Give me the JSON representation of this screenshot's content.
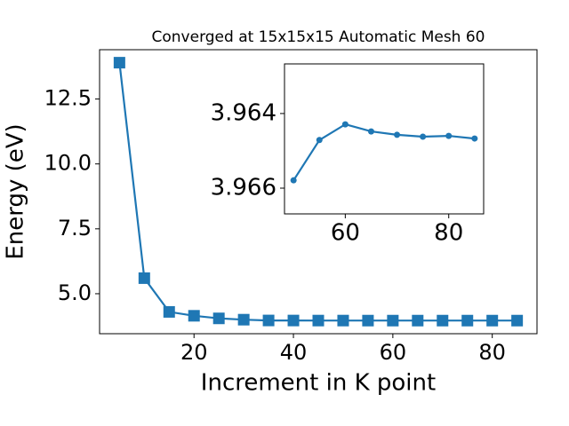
{
  "chart_data": [
    {
      "type": "line",
      "title": "Converged at 15x15x15 Automatic Mesh 60",
      "x_label": "Increment in K point",
      "y_label": "Energy (eV)",
      "x": [
        5,
        10,
        15,
        20,
        25,
        30,
        35,
        40,
        45,
        50,
        55,
        60,
        65,
        70,
        75,
        80,
        85
      ],
      "values": [
        13.9,
        5.6,
        4.3,
        4.15,
        4.05,
        4.0,
        3.97,
        3.968,
        3.966,
        3.9658,
        3.9647,
        3.9643,
        3.9645,
        3.9646,
        3.9646,
        3.9646,
        3.9647
      ],
      "color": "#1f77b4",
      "marker": "square",
      "xlim": [
        1,
        89
      ],
      "xticks": [
        20,
        40,
        60,
        80
      ],
      "ylim": [
        3.46,
        14.4
      ],
      "yticks": [
        {
          "value": 5,
          "label": "5.0"
        },
        7.5,
        {
          "value": 10,
          "label": "10.0"
        },
        12.5
      ]
    },
    {
      "type": "line",
      "x": [
        50,
        55,
        60,
        65,
        70,
        75,
        80,
        85
      ],
      "values": [
        3.96579,
        3.96471,
        3.96429,
        3.96448,
        3.96457,
        3.96462,
        3.9646,
        3.96467
      ],
      "color": "#1f77b4",
      "marker": "circle",
      "xlim": [
        48.25,
        86.75
      ],
      "xticks": [
        60,
        80
      ],
      "ylim": [
        3.96669,
        3.96267
      ],
      "yticks": [
        3.964,
        3.966
      ]
    }
  ]
}
